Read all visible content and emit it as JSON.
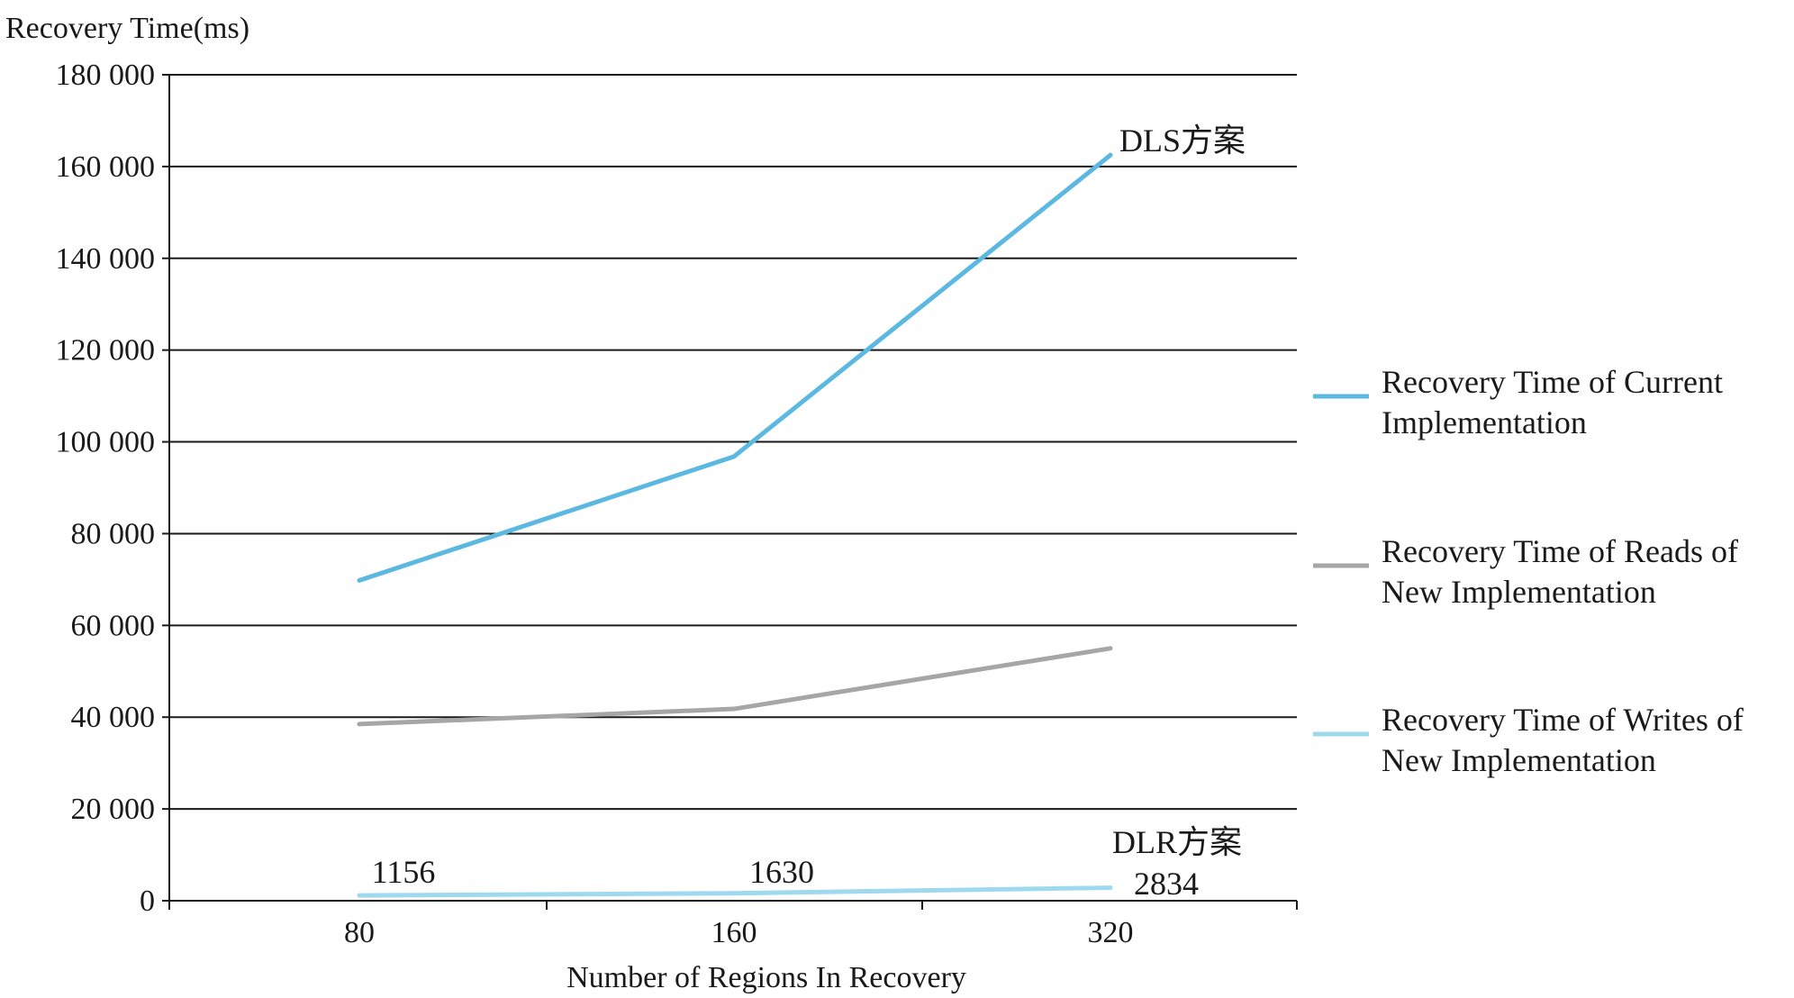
{
  "chart_data": {
    "type": "line",
    "title": "",
    "xlabel": "Number of Regions In Recovery",
    "ylabel": "Recovery Time(ms)",
    "categories": [
      "80",
      "160",
      "320"
    ],
    "ylim": [
      0,
      180000
    ],
    "yticks": [
      0,
      20000,
      40000,
      60000,
      80000,
      100000,
      120000,
      140000,
      160000,
      180000
    ],
    "ytick_labels": [
      "0",
      "20 000",
      "40 000",
      "60 000",
      "80 000",
      "100 000",
      "120 000",
      "140 000",
      "160 000",
      "180 000"
    ],
    "grid": true,
    "legend_position": "right",
    "series": [
      {
        "name": "Recovery Time of Current Implementation",
        "values": [
          69800,
          96800,
          162500
        ],
        "color": "#5bb8e0",
        "end_annotation": "DLS方案"
      },
      {
        "name": "Recovery Time of Reads of New Implementation",
        "values": [
          38500,
          41800,
          55000
        ],
        "color": "#a6a6a6"
      },
      {
        "name": "Recovery Time of Writes of New Implementation",
        "values": [
          1156,
          1630,
          2834
        ],
        "color": "#9fd9ef",
        "data_labels": [
          "1156",
          "1630",
          "2834"
        ],
        "end_annotation": "DLR方案"
      }
    ]
  }
}
